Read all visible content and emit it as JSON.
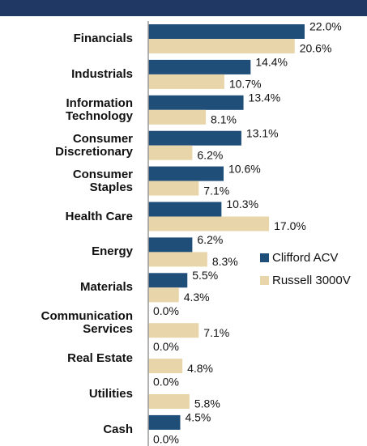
{
  "chart_data": {
    "type": "bar",
    "orientation": "horizontal",
    "categories": [
      "Financials",
      "Industrials",
      "Information\nTechnology",
      "Consumer\nDiscretionary",
      "Consumer\nStaples",
      "Health Care",
      "Energy",
      "Materials",
      "Communication\nServices",
      "Real Estate",
      "Utilities",
      "Cash"
    ],
    "series": [
      {
        "name": "Clifford ACV",
        "color": "#1f4e79",
        "values": [
          22.0,
          14.4,
          13.4,
          13.1,
          10.6,
          10.3,
          6.2,
          5.5,
          0.0,
          0.0,
          0.0,
          4.5
        ],
        "value_labels": [
          "22.0%",
          "14.4%",
          "13.4%",
          "13.1%",
          "10.6%",
          "10.3%",
          "6.2%",
          "5.5%",
          "0.0%",
          "0.0%",
          "0.0%",
          "4.5%"
        ]
      },
      {
        "name": "Russell 3000V",
        "color": "#e8d5a9",
        "values": [
          20.6,
          10.7,
          8.1,
          6.2,
          7.1,
          17.0,
          8.3,
          4.3,
          7.1,
          4.8,
          5.8,
          0.0
        ],
        "value_labels": [
          "20.6%",
          "10.7%",
          "8.1%",
          "6.2%",
          "7.1%",
          "17.0%",
          "8.3%",
          "4.3%",
          "7.1%",
          "4.8%",
          "5.8%",
          "0.0%"
        ]
      }
    ],
    "xlim": [
      0,
      22.0
    ]
  }
}
